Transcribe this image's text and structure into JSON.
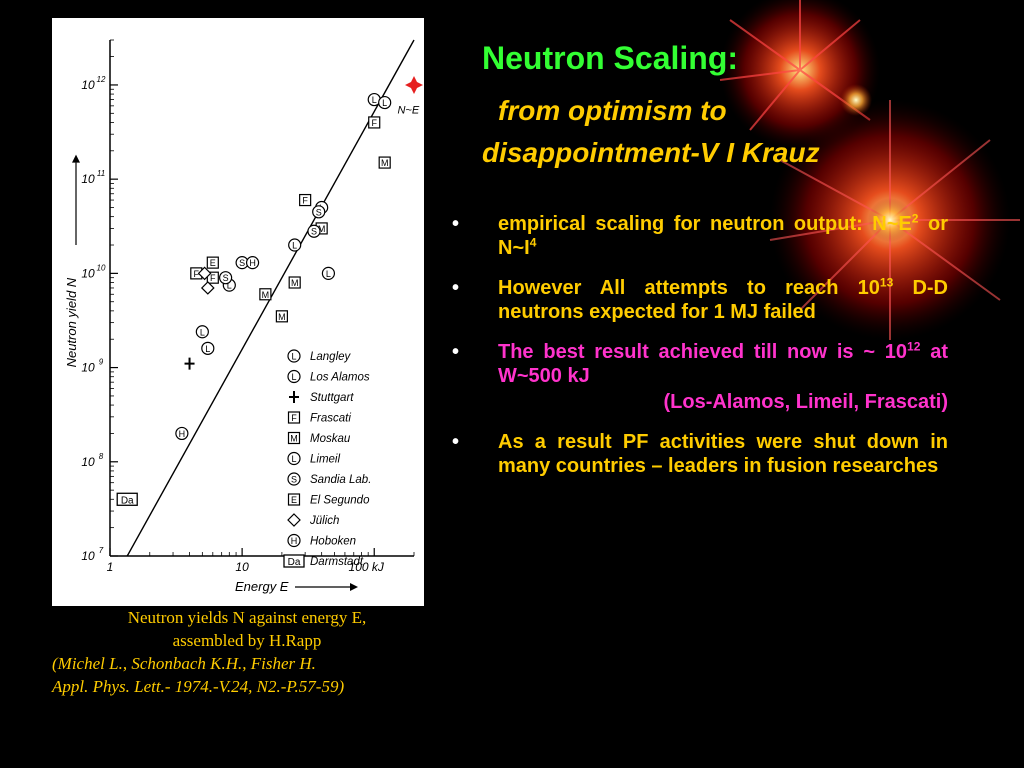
{
  "slide": {
    "title": "Neutron Scaling:",
    "subtitle_line1": "from optimism to",
    "subtitle_line2": "disappointment-V I Krauz"
  },
  "bullets": [
    {
      "text_pre": "empirical scaling for neutron output: N~E",
      "sup1": "2",
      "text_mid": " or N~I",
      "sup2": "4",
      "color": "#ffcc00"
    },
    {
      "text_pre": "However All attempts to reach 10",
      "sup1": "13",
      "text_post": " D-D neutrons expected for 1 MJ failed",
      "color": "#ffcc00"
    },
    {
      "text_pre": "The best result achieved till now is ~ 10",
      "sup1": "12",
      "text_post": " at W~500 kJ",
      "note": "(Los-Alamos, Limeil, Frascati)",
      "color": "#ff33cc"
    },
    {
      "text": "As a result PF activities were shut down in many countries – leaders in fusion researches",
      "color": "#ffcc00"
    }
  ],
  "caption": {
    "line1": "Neutron yields N against energy E,",
    "line2": "assembled by H.Rapp",
    "line3": "(Michel L., Schonbach K.H., Fisher H.",
    "line4": "Appl. Phys. Lett.- 1974.-V.24, N2.-P.57-59)"
  },
  "chart_data": {
    "type": "scatter",
    "xlabel": "Energy E",
    "ylabel": "Neutron yield N",
    "x_scale": "log",
    "y_scale": "log",
    "xlim": [
      1,
      200
    ],
    "ylim": [
      10000000,
      3000000000000
    ],
    "x_ticks": [
      "1",
      "10",
      "100 kJ"
    ],
    "y_ticks": [
      "10^7",
      "10^8",
      "10^9",
      "10^10",
      "10^11",
      "10^12"
    ],
    "fit_line_label": "N~E^2.1",
    "fit_line": [
      [
        1.35,
        10000000
      ],
      [
        200,
        3000000000000
      ]
    ],
    "legend": [
      "Langley",
      "Los Alamos",
      "Stuttgart",
      "Frascati",
      "Moskau",
      "Limeil",
      "Sandia Lab.",
      "El Segundo",
      "Jülich",
      "Hoboken",
      "Darmstadt"
    ],
    "series": [
      {
        "name": "Langley",
        "symbol": "L",
        "points": [
          [
            100,
            700000000000
          ]
        ]
      },
      {
        "name": "Los Alamos",
        "symbol": "L",
        "points": [
          [
            120,
            650000000000
          ]
        ]
      },
      {
        "name": "Stuttgart",
        "symbol": "+",
        "points": [
          [
            4,
            1100000000
          ]
        ]
      },
      {
        "name": "Frascati",
        "symbol": "F",
        "points": [
          [
            100,
            400000000000
          ],
          [
            30,
            60000000000
          ],
          [
            4.5,
            10000000000
          ],
          [
            6,
            9000000000
          ]
        ]
      },
      {
        "name": "Moskau",
        "symbol": "M",
        "points": [
          [
            120,
            150000000000
          ],
          [
            40,
            30000000000
          ],
          [
            25,
            8000000000
          ],
          [
            15,
            6000000000
          ],
          [
            20,
            3500000000
          ]
        ]
      },
      {
        "name": "Limeil",
        "symbol": "L",
        "points": [
          [
            40,
            50000000000
          ],
          [
            25,
            20000000000
          ],
          [
            45,
            10000000000
          ],
          [
            5,
            2400000000
          ],
          [
            5.5,
            1600000000
          ],
          [
            8,
            7500000000
          ]
        ]
      },
      {
        "name": "Sandia Lab.",
        "symbol": "S",
        "points": [
          [
            38,
            45000000000
          ],
          [
            35,
            28000000000
          ],
          [
            10,
            13000000000
          ],
          [
            7.5,
            9000000000
          ]
        ]
      },
      {
        "name": "El Segundo",
        "symbol": "E",
        "points": [
          [
            6,
            13000000000
          ]
        ]
      },
      {
        "name": "Jülich",
        "symbol": "◇",
        "points": [
          [
            5.2,
            10000000000
          ],
          [
            5.5,
            7000000000
          ]
        ]
      },
      {
        "name": "Hoboken",
        "symbol": "H",
        "points": [
          [
            3.5,
            200000000
          ],
          [
            12,
            13000000000
          ]
        ]
      },
      {
        "name": "Darmstadt",
        "symbol": "Da",
        "points": [
          [
            1.35,
            40000000
          ]
        ]
      },
      {
        "name": "",
        "symbol": "★",
        "color": "#e62020",
        "points": [
          [
            200,
            1000000000000
          ]
        ]
      }
    ]
  },
  "colors": {
    "background": "#000000",
    "title": "#33ff33",
    "yellow_text": "#ffcc00",
    "magenta_text": "#ff33cc",
    "plot_background": "#ffffff"
  }
}
